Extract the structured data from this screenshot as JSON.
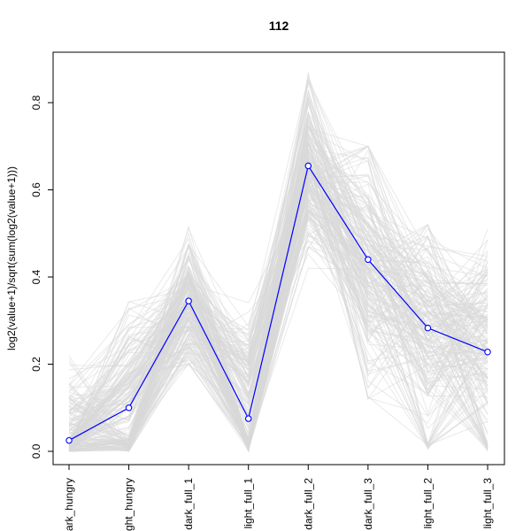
{
  "chart_data": {
    "type": "line",
    "title": "112",
    "xlabel": "",
    "ylabel": "log2(value+1)/sqrt(sum(log2(value+1)))",
    "categories": [
      "dark_hungry",
      "light_hungry",
      "dark_full_1",
      "light_full_1",
      "dark_full_2",
      "dark_full_3",
      "light_full_2",
      "light_full_3"
    ],
    "tick_labels": [
      "ark_hungry",
      "ght_hungry",
      "dark_full_1",
      "light_full_1",
      "dark_full_2",
      "dark_full_3",
      "light_full_2",
      "light_full_3"
    ],
    "ylim": [
      -0.02,
      0.92
    ],
    "yticks": [
      0.0,
      0.2,
      0.4,
      0.6,
      0.8
    ],
    "ytick_labels": [
      "0.0",
      "0.2",
      "0.4",
      "0.6",
      "0.8"
    ],
    "grid": false,
    "series": [
      {
        "color": "#0000ff",
        "marker": "open-circle",
        "values": [
          0.025,
          0.1,
          0.345,
          0.075,
          0.655,
          0.44,
          0.283,
          0.228
        ]
      }
    ],
    "background_lines": {
      "color": "#d9d9d9",
      "count": 200,
      "profile_mean": [
        0.05,
        0.15,
        0.33,
        0.16,
        0.65,
        0.43,
        0.3,
        0.28
      ],
      "profile_min": [
        0.0,
        0.0,
        0.2,
        0.0,
        0.42,
        0.12,
        0.0,
        0.0
      ],
      "profile_max": [
        0.33,
        0.38,
        0.56,
        0.35,
        0.87,
        0.7,
        0.52,
        0.51
      ]
    }
  }
}
